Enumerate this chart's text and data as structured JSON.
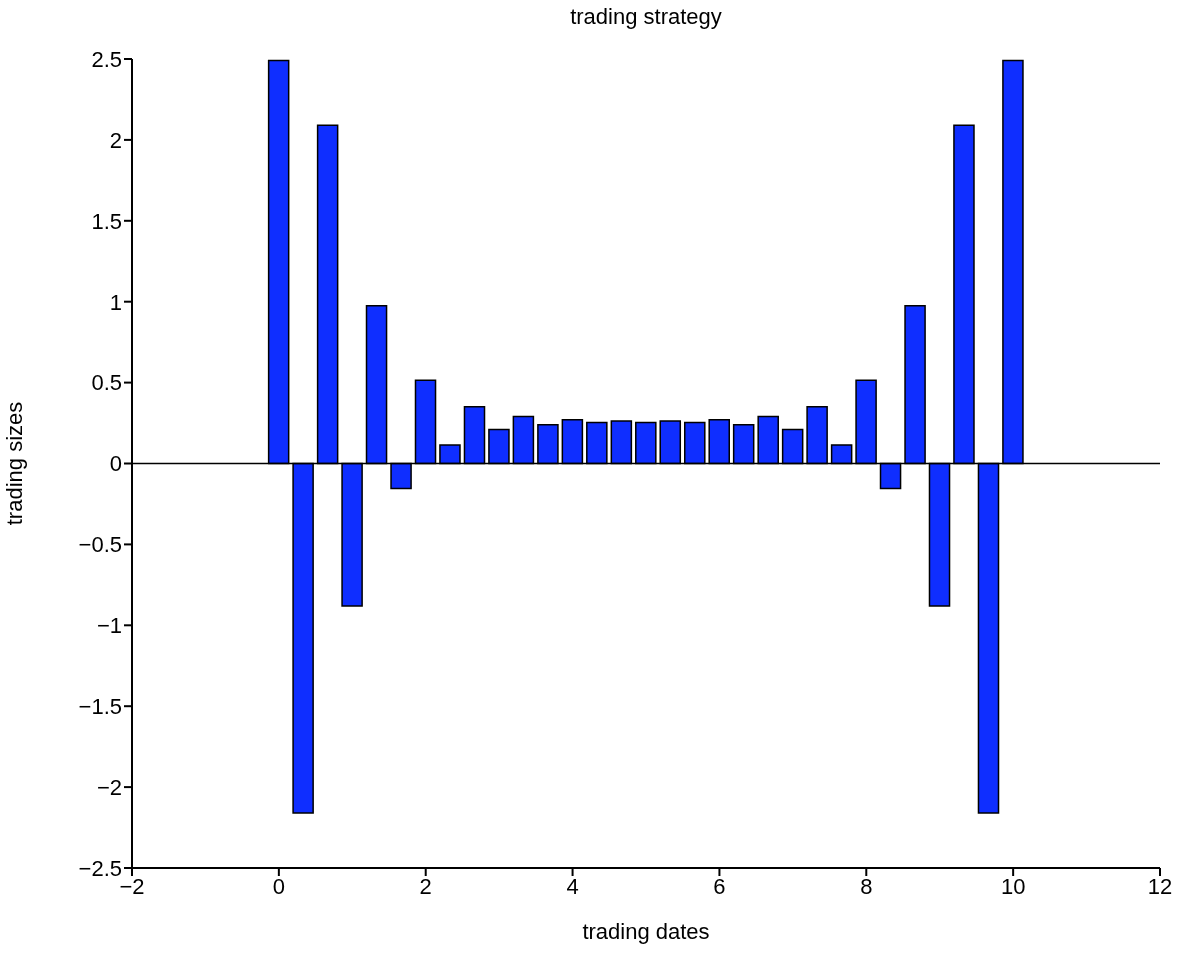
{
  "chart_data": {
    "type": "bar",
    "title": "trading strategy",
    "xlabel": "trading dates",
    "ylabel": "trading sizes",
    "x": [
      0,
      0.333,
      0.667,
      1,
      1.333,
      1.667,
      2,
      2.333,
      2.667,
      3,
      3.333,
      3.667,
      4,
      4.333,
      4.667,
      5,
      5.333,
      5.667,
      6,
      6.333,
      6.667,
      7,
      7.333,
      7.667,
      8,
      8.333,
      8.667,
      9,
      9.333,
      9.667,
      10
    ],
    "values": [
      2.49,
      -2.16,
      2.09,
      -0.88,
      0.975,
      -0.155,
      0.515,
      0.115,
      0.35,
      0.21,
      0.29,
      0.24,
      0.27,
      0.253,
      0.263,
      0.253,
      0.263,
      0.253,
      0.27,
      0.24,
      0.29,
      0.21,
      0.35,
      0.115,
      0.515,
      -0.155,
      0.975,
      -0.88,
      2.09,
      -2.16,
      2.49
    ],
    "color": "#0f2eff",
    "xlim": [
      -2,
      12
    ],
    "xticks": [
      -2,
      0,
      2,
      4,
      6,
      8,
      10,
      12
    ],
    "ylim": [
      -2.5,
      2.5
    ],
    "yticks": [
      -2.5,
      -2,
      -1.5,
      -1,
      -0.5,
      0,
      0.5,
      1,
      1.5,
      2,
      2.5
    ],
    "ref_lines": [
      {
        "axis": "y",
        "value": 0,
        "color": "#000000"
      }
    ],
    "grid": false,
    "legend": false
  }
}
